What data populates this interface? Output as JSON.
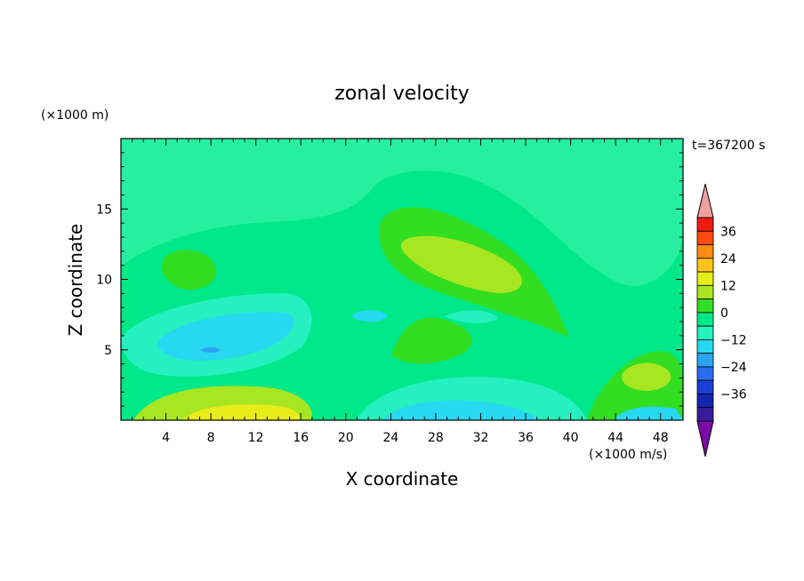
{
  "chart_data": {
    "type": "heatmap",
    "title": "zonal velocity",
    "xlabel": "X coordinate",
    "ylabel": "Z coordinate",
    "x_unit": "(×1000 m/s)",
    "y_unit": "(×1000 m)",
    "time_label": "t=367200 s",
    "xlim": [
      0,
      50
    ],
    "ylim": [
      0,
      20
    ],
    "x_ticks": [
      "4",
      "8",
      "12",
      "16",
      "20",
      "24",
      "28",
      "32",
      "36",
      "40",
      "44",
      "48"
    ],
    "y_ticks": [
      "5",
      "10",
      "15"
    ],
    "colorbar": {
      "tick_labels": [
        "36",
        "24",
        "12",
        "0",
        "−12",
        "−24",
        "−36"
      ],
      "levels": [
        -42,
        -36,
        -30,
        -24,
        -18,
        -12,
        -6,
        0,
        6,
        12,
        18,
        24,
        30,
        36,
        42
      ],
      "colors": [
        "#7a0ca8",
        "#3a1a9c",
        "#1626b0",
        "#1a3fd8",
        "#2a6cf0",
        "#2aa4f0",
        "#27d8f0",
        "#26f0c0",
        "#00e88a",
        "#33dd22",
        "#a8e622",
        "#e8ec1a",
        "#ffc41a",
        "#ff8a14",
        "#ff4a10",
        "#ee1c10",
        "#f0a0a0"
      ]
    },
    "grid": false,
    "regions": [
      {
        "x": 3,
        "z": 12,
        "value": 1
      },
      {
        "x": 10,
        "z": 4,
        "value": -9
      },
      {
        "x": 8,
        "z": 5,
        "value": -15
      },
      {
        "x": 12,
        "z": 0.5,
        "value": 14
      },
      {
        "x": 23,
        "z": 13,
        "value": 4
      },
      {
        "x": 30,
        "z": 11,
        "value": 8
      },
      {
        "x": 29,
        "z": 4.5,
        "value": 5
      },
      {
        "x": 26,
        "z": 1,
        "value": -8
      },
      {
        "x": 36,
        "z": 1,
        "value": -6
      },
      {
        "x": 47,
        "z": 3,
        "value": 8
      },
      {
        "x": 46,
        "z": 0.5,
        "value": -10
      },
      {
        "x": 14,
        "z": 17,
        "value": -3
      },
      {
        "x": 36,
        "z": 17,
        "value": -3
      }
    ]
  }
}
